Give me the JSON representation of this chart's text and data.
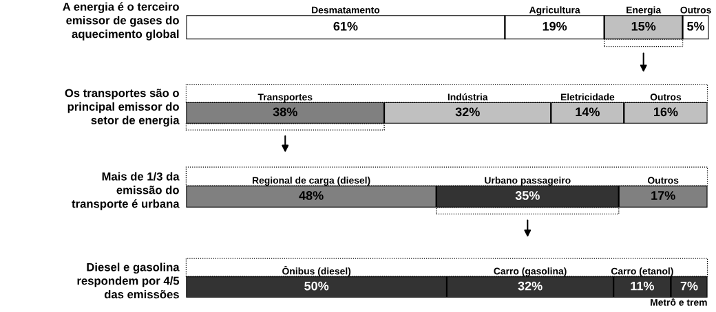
{
  "chart_data": [
    {
      "type": "bar",
      "orientation": "horizontal",
      "stacked": true,
      "title": "A energia é o terceiro\nemissor de gases do\naquecimento global",
      "categories": [
        null
      ],
      "xlim": [
        0,
        100
      ],
      "tick_labels": false,
      "series": [
        {
          "name": "Desmatamento",
          "color": "#ffffff",
          "values": [
            61
          ],
          "value_labels": [
            "61%"
          ]
        },
        {
          "name": "Agricultura",
          "color": "#ffffff",
          "values": [
            19
          ],
          "value_labels": [
            "19%"
          ]
        },
        {
          "name": "Energia",
          "color": "#c0c0c0",
          "values": [
            15
          ],
          "value_labels": [
            "15%"
          ]
        },
        {
          "name": "Outros",
          "color": "#ffffff",
          "values": [
            5
          ],
          "value_labels": [
            "5%"
          ]
        }
      ]
    },
    {
      "type": "bar",
      "orientation": "horizontal",
      "stacked": true,
      "title": "Os transportes são o\nprincipal emissor do\nsetor de energia",
      "categories": [
        null
      ],
      "xlim": [
        0,
        100
      ],
      "tick_labels": false,
      "series": [
        {
          "name": "Transportes",
          "color": "#808080",
          "values": [
            38
          ],
          "value_labels": [
            "38%"
          ]
        },
        {
          "name": "Indústria",
          "color": "#c0c0c0",
          "values": [
            32
          ],
          "value_labels": [
            "32%"
          ]
        },
        {
          "name": "Eletricidade",
          "color": "#c0c0c0",
          "values": [
            14
          ],
          "value_labels": [
            "14%"
          ]
        },
        {
          "name": "Outros",
          "color": "#c0c0c0",
          "values": [
            16
          ],
          "value_labels": [
            "16%"
          ]
        }
      ]
    },
    {
      "type": "bar",
      "orientation": "horizontal",
      "stacked": true,
      "title": "Mais de 1/3 da\nemissão do\ntransporte é urbana",
      "categories": [
        null
      ],
      "xlim": [
        0,
        100
      ],
      "tick_labels": false,
      "series": [
        {
          "name": "Regional de carga (diesel)",
          "color": "#808080",
          "values": [
            48
          ],
          "value_labels": [
            "48%"
          ]
        },
        {
          "name": "Urbano passageiro",
          "color": "#333333",
          "values": [
            35
          ],
          "value_labels": [
            "35%"
          ]
        },
        {
          "name": "Outros",
          "color": "#808080",
          "values": [
            17
          ],
          "value_labels": [
            "17%"
          ]
        }
      ]
    },
    {
      "type": "bar",
      "orientation": "horizontal",
      "stacked": true,
      "title": "Diesel e gasolina\nrespondem por 4/5\ndas emissões",
      "categories": [
        null
      ],
      "xlim": [
        0,
        100
      ],
      "tick_labels": false,
      "series": [
        {
          "name": "Ônibus (diesel)",
          "color": "#333333",
          "values": [
            50
          ],
          "value_labels": [
            "50%"
          ]
        },
        {
          "name": "Carro (gasolina)",
          "color": "#333333",
          "values": [
            32
          ],
          "value_labels": [
            "32%"
          ]
        },
        {
          "name": "Carro (etanol)",
          "color": "#333333",
          "values": [
            11
          ],
          "value_labels": [
            "11%"
          ]
        },
        {
          "name": "Metrô e trem",
          "color": "#333333",
          "values": [
            7
          ],
          "value_labels": [
            "7%"
          ]
        }
      ]
    }
  ]
}
